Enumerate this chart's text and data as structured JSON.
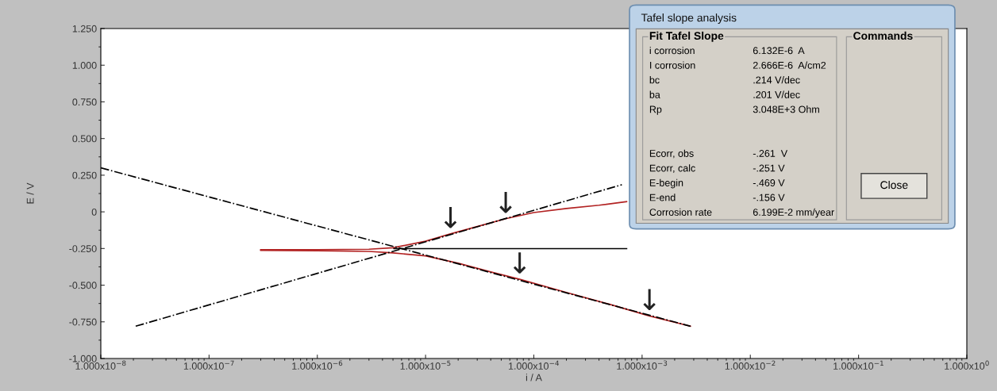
{
  "chart_data": [
    {
      "type": "line",
      "xlabel": "i / A",
      "ylabel": "E / V",
      "log": "x",
      "grid": false,
      "xlim": [
        1e-08,
        1
      ],
      "ylim": [
        -1.0,
        1.25
      ],
      "xticks": [
        {
          "value": 1e-08,
          "label": "1.000x10$^{−8}$"
        },
        {
          "value": 1e-07,
          "label": "1.000x10$^{−7}$"
        },
        {
          "value": 1e-06,
          "label": "1.000x10$^{−6}$"
        },
        {
          "value": 1e-05,
          "label": "1.000x10$^{−5}$"
        },
        {
          "value": 0.0001,
          "label": "1.000x10$^{−4}$"
        },
        {
          "value": 0.001,
          "label": "1.000x10$^{−3}$"
        },
        {
          "value": 0.01,
          "label": "1.000x10$^{−2}$"
        },
        {
          "value": 0.1,
          "label": "1.000x10$^{−1}$"
        },
        {
          "value": 1,
          "label": "1.000x10$^{0}$"
        }
      ],
      "yticks": [
        {
          "value": 1.25,
          "label": "1.250"
        },
        {
          "value": 1.0,
          "label": "1.000"
        },
        {
          "value": 0.75,
          "label": "0.750"
        },
        {
          "value": 0.5,
          "label": "0.500"
        },
        {
          "value": 0.25,
          "label": "0.250"
        },
        0,
        {
          "value": -0.25,
          "label": "-0.250"
        },
        {
          "value": -0.5,
          "label": "-0.500"
        },
        {
          "value": -0.75,
          "label": "-0.750"
        },
        {
          "value": -1.0,
          "label": "-1.000"
        }
      ],
      "series": [
        {
          "type": "line",
          "color": "#b22222",
          "line_style": "solid",
          "x": [
            3e-07,
            1e-06,
            3e-06,
            5e-06,
            1e-05,
            1.7e-05,
            3e-05,
            5.5e-05,
            0.0001,
            0.0002,
            0.0004,
            0.00072
          ],
          "values": [
            -0.258,
            -0.258,
            -0.255,
            -0.245,
            -0.2,
            -0.15,
            -0.1,
            -0.047,
            -0.005,
            0.023,
            0.045,
            0.07
          ]
        },
        {
          "type": "line",
          "color": "#b22222",
          "line_style": "solid",
          "x": [
            3e-07,
            1e-06,
            3e-06,
            5e-06,
            1e-05,
            2e-05,
            4e-05,
            7.4e-05,
            0.0002,
            0.0005,
            0.00117,
            0.0028
          ],
          "values": [
            -0.262,
            -0.265,
            -0.27,
            -0.28,
            -0.3,
            -0.35,
            -0.41,
            -0.46,
            -0.55,
            -0.63,
            -0.71,
            -0.78
          ]
        },
        {
          "type": "line",
          "color": "#000000",
          "line_style": "dashdot",
          "x": [
            1e-08,
            0.0028
          ],
          "values": [
            0.3,
            -0.78
          ]
        },
        {
          "type": "line",
          "color": "#000000",
          "line_style": "dashdot",
          "x": [
            2.1e-08,
            0.00065
          ],
          "values": [
            -0.78,
            0.185
          ]
        },
        {
          "type": "line",
          "color": "#000000",
          "line_style": "solid",
          "x": [
            5.1e-06,
            0.00072
          ],
          "values": [
            -0.251,
            -0.251
          ]
        }
      ],
      "annotations": [
        {
          "text": "↓",
          "x": 1.7e-05,
          "y": -0.15
        },
        {
          "text": "↓",
          "x": 5.5e-05,
          "y": -0.047
        },
        {
          "text": "↓",
          "x": 7.4e-05,
          "y": -0.46
        },
        {
          "text": "↓",
          "x": 0.00117,
          "y": -0.71
        }
      ]
    },
    {
      "type": "other",
      "title": "Tafel slope analysis",
      "annotations": [
        "Fit Tafel Slope",
        "Commands",
        "Close",
        "i corrosion",
        "6.132E-6  A",
        "I corrosion",
        "2.666E-6  A/cm2",
        "bc",
        ".214 V/dec",
        "ba",
        ".201 V/dec",
        "Rp",
        "3.048E+3 Ohm",
        "Ecorr, obs",
        "-.261  V",
        "Ecorr, calc",
        "-.251 V",
        "E-begin",
        "-.469 V",
        "E-end",
        "-.156 V",
        "Corrosion rate",
        "6.199E-2 mm/year"
      ]
    }
  ]
}
